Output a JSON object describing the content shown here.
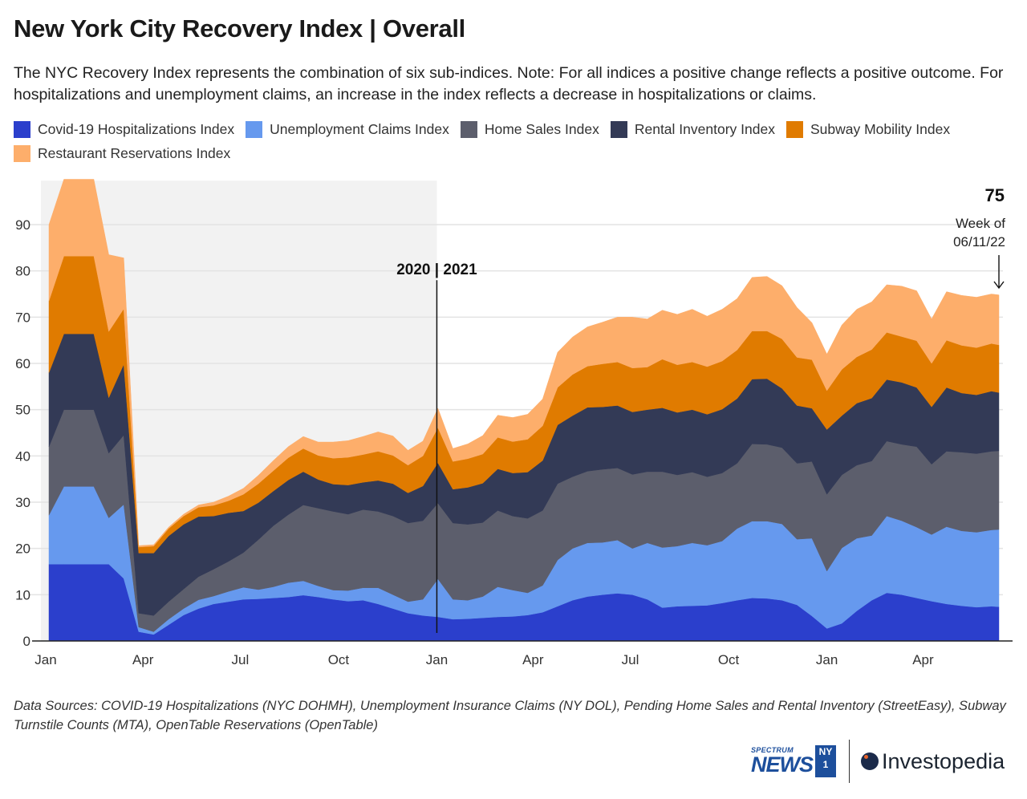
{
  "header": {
    "title": "New York City Recovery Index | Overall",
    "subtitle": "The NYC Recovery Index represents the combination of six sub-indices. Note: For all indices a positive change reflects a positive outcome. For hospitalizations and unemployment claims, an increase in the index reflects a decrease in hospitalizations or claims."
  },
  "legend": [
    {
      "label": "Covid-19 Hospitalizations Index",
      "color": "#2b3fcc"
    },
    {
      "label": "Unemployment Claims Index",
      "color": "#6699ee"
    },
    {
      "label": "Home Sales Index",
      "color": "#5c5e6c"
    },
    {
      "label": "Rental Inventory Index",
      "color": "#333a56"
    },
    {
      "label": "Subway Mobility Index",
      "color": "#e07b00"
    },
    {
      "label": "Restaurant Reservations Index",
      "color": "#fdae6b"
    }
  ],
  "chart_data": {
    "type": "area",
    "stacked": true,
    "title": "New York City Recovery Index | Overall",
    "xlabel": "",
    "ylabel": "",
    "ylim": [
      0,
      100
    ],
    "yticks": [
      0,
      10,
      20,
      30,
      40,
      50,
      60,
      70,
      80,
      90
    ],
    "grid": true,
    "xtick_labels": [
      {
        "label": "Jan",
        "date": "2020-01-01"
      },
      {
        "label": "Apr",
        "date": "2020-04-01"
      },
      {
        "label": "Jul",
        "date": "2020-07-01"
      },
      {
        "label": "Oct",
        "date": "2020-10-01"
      },
      {
        "label": "Jan",
        "date": "2021-01-01"
      },
      {
        "label": "Apr",
        "date": "2021-04-01"
      },
      {
        "label": "Jul",
        "date": "2021-07-01"
      },
      {
        "label": "Oct",
        "date": "2021-10-01"
      },
      {
        "label": "Jan",
        "date": "2022-01-01"
      },
      {
        "label": "Apr",
        "date": "2022-04-01"
      }
    ],
    "x_start": "2020-01-04",
    "x_step_days": 14,
    "x": [
      "2020-01-04",
      "2020-01-18",
      "2020-02-01",
      "2020-02-15",
      "2020-02-29",
      "2020-03-14",
      "2020-03-28",
      "2020-04-11",
      "2020-04-25",
      "2020-05-09",
      "2020-05-23",
      "2020-06-06",
      "2020-06-20",
      "2020-07-04",
      "2020-07-18",
      "2020-08-01",
      "2020-08-15",
      "2020-08-29",
      "2020-09-12",
      "2020-09-26",
      "2020-10-10",
      "2020-10-24",
      "2020-11-07",
      "2020-11-21",
      "2020-12-05",
      "2020-12-19",
      "2021-01-02",
      "2021-01-16",
      "2021-01-30",
      "2021-02-13",
      "2021-02-27",
      "2021-03-13",
      "2021-03-27",
      "2021-04-10",
      "2021-04-24",
      "2021-05-08",
      "2021-05-22",
      "2021-06-05",
      "2021-06-19",
      "2021-07-03",
      "2021-07-17",
      "2021-07-31",
      "2021-08-14",
      "2021-08-28",
      "2021-09-11",
      "2021-09-25",
      "2021-10-09",
      "2021-10-23",
      "2021-11-06",
      "2021-11-20",
      "2021-12-04",
      "2021-12-18",
      "2022-01-01",
      "2022-01-15",
      "2022-01-29",
      "2022-02-12",
      "2022-02-26",
      "2022-03-12",
      "2022-03-26",
      "2022-04-09",
      "2022-04-23",
      "2022-05-07",
      "2022-05-21",
      "2022-06-04",
      "2022-06-11"
    ],
    "series": [
      {
        "name": "Covid-19 Hospitalizations Index",
        "color": "#2b3fcc",
        "values": [
          16.6,
          16.6,
          16.6,
          16.6,
          16.6,
          13.5,
          2.0,
          1.4,
          3.5,
          5.6,
          7.0,
          8.0,
          8.5,
          9.0,
          9.1,
          9.3,
          9.5,
          9.9,
          9.5,
          9.0,
          8.6,
          8.8,
          8.0,
          7.0,
          6.0,
          5.5,
          5.2,
          4.7,
          4.8,
          5.0,
          5.2,
          5.3,
          5.6,
          6.2,
          7.5,
          8.8,
          9.6,
          10.0,
          10.3,
          10.0,
          9.0,
          7.2,
          7.5,
          7.6,
          7.7,
          8.2,
          8.8,
          9.3,
          9.2,
          8.8,
          7.8,
          5.4,
          2.7,
          3.8,
          6.5,
          8.8,
          10.4,
          10.0,
          9.3,
          8.6,
          8.0,
          7.6,
          7.3,
          7.5,
          7.4
        ]
      },
      {
        "name": "Unemployment Claims Index",
        "color": "#6699ee",
        "values": [
          10.6,
          16.8,
          16.8,
          16.8,
          10.0,
          16.0,
          1.0,
          0.6,
          1.2,
          1.4,
          1.9,
          1.7,
          2.2,
          2.6,
          2.0,
          2.4,
          3.1,
          3.1,
          2.4,
          2.0,
          2.3,
          2.7,
          3.5,
          3.0,
          2.5,
          3.5,
          8.2,
          4.3,
          4.0,
          4.6,
          6.5,
          5.7,
          4.8,
          5.8,
          10.0,
          11.2,
          11.6,
          11.3,
          11.5,
          10.0,
          12.2,
          13.0,
          13.0,
          13.6,
          13.0,
          13.4,
          15.5,
          16.6,
          16.7,
          16.5,
          14.2,
          16.8,
          12.4,
          16.3,
          15.7,
          14.0,
          16.6,
          16.0,
          15.3,
          14.4,
          16.7,
          16.2,
          16.2,
          16.5,
          16.7
        ]
      },
      {
        "name": "Home Sales Index",
        "color": "#5c5e6c",
        "values": [
          14.8,
          16.6,
          16.6,
          16.6,
          14.0,
          15.0,
          3.0,
          3.5,
          3.8,
          4.2,
          5.0,
          5.8,
          6.5,
          7.5,
          10.8,
          13.2,
          14.7,
          16.4,
          16.8,
          17.0,
          16.5,
          16.9,
          16.5,
          17.0,
          17.0,
          17.0,
          16.4,
          16.5,
          16.4,
          16.0,
          16.5,
          16.0,
          16.1,
          16.2,
          16.5,
          15.5,
          15.5,
          15.8,
          15.6,
          16.0,
          15.4,
          16.4,
          15.4,
          15.3,
          14.8,
          14.7,
          14.1,
          16.7,
          16.6,
          16.5,
          16.4,
          16.6,
          16.6,
          15.8,
          15.8,
          16.1,
          16.2,
          16.5,
          17.4,
          15.2,
          16.3,
          17.0,
          17.0,
          17.0,
          17.0
        ]
      },
      {
        "name": "Rental Inventory Index",
        "color": "#333a56",
        "values": [
          16.0,
          16.4,
          16.4,
          16.4,
          12.0,
          15.3,
          13.0,
          13.5,
          14.2,
          14.0,
          13.0,
          11.5,
          10.5,
          9.0,
          8.0,
          7.5,
          7.5,
          7.2,
          6.2,
          5.9,
          6.3,
          5.9,
          6.7,
          7.0,
          6.5,
          7.5,
          8.7,
          7.3,
          8.0,
          8.5,
          9.0,
          9.3,
          10.0,
          10.8,
          12.7,
          13.2,
          13.8,
          13.5,
          13.5,
          13.5,
          13.4,
          13.8,
          13.5,
          13.5,
          13.5,
          13.8,
          14.0,
          14.0,
          14.2,
          12.8,
          12.5,
          11.5,
          14.0,
          12.8,
          13.4,
          13.6,
          13.3,
          13.4,
          12.8,
          12.4,
          13.8,
          12.8,
          12.7,
          13.0,
          12.6
        ]
      },
      {
        "name": "Subway Mobility Index",
        "color": "#e07b00",
        "values": [
          15.5,
          16.8,
          16.8,
          16.8,
          14.3,
          12.0,
          1.3,
          1.5,
          1.6,
          1.8,
          2.0,
          2.3,
          2.6,
          3.6,
          4.1,
          4.4,
          4.8,
          5.0,
          5.2,
          5.6,
          6.0,
          6.0,
          6.3,
          6.1,
          6.0,
          6.5,
          7.6,
          6.0,
          6.2,
          6.3,
          6.8,
          6.8,
          7.1,
          7.5,
          8.1,
          8.9,
          8.9,
          9.3,
          9.4,
          9.5,
          9.2,
          10.5,
          10.3,
          10.3,
          10.3,
          10.4,
          10.5,
          10.4,
          10.3,
          10.7,
          10.4,
          10.5,
          8.4,
          10.0,
          10.0,
          10.5,
          10.2,
          9.9,
          10.1,
          9.4,
          10.2,
          10.3,
          10.2,
          10.3,
          10.3
        ]
      },
      {
        "name": "Restaurant Reservations Index",
        "color": "#fdae6b",
        "values": [
          16.5,
          16.6,
          16.6,
          16.6,
          16.6,
          11.0,
          0.3,
          0.3,
          0.3,
          0.4,
          0.5,
          0.7,
          1.0,
          1.3,
          1.8,
          2.2,
          2.4,
          2.6,
          2.9,
          3.5,
          3.6,
          3.9,
          4.2,
          4.2,
          3.2,
          3.2,
          4.2,
          2.8,
          3.2,
          4.0,
          4.8,
          5.2,
          5.4,
          5.8,
          7.6,
          8.1,
          8.5,
          9.0,
          9.7,
          11.0,
          10.4,
          10.6,
          10.9,
          11.4,
          10.9,
          11.2,
          11.1,
          11.6,
          11.8,
          11.5,
          10.8,
          8.0,
          7.9,
          9.6,
          10.3,
          10.3,
          10.3,
          10.9,
          10.8,
          9.6,
          10.5,
          10.8,
          10.9,
          10.7,
          10.8
        ]
      }
    ],
    "annotations": [
      {
        "type": "divider",
        "date": "2021-01-01",
        "label": "2020 | 2021"
      },
      {
        "type": "shaded_region",
        "from": "2020-01-01",
        "to": "2021-01-01",
        "note": "2020"
      },
      {
        "type": "callout",
        "date": "2022-06-11",
        "value_label": "75",
        "text_lines": [
          "Week of",
          "06/11/22"
        ]
      }
    ]
  },
  "footer": {
    "sources": "Data Sources: COVID-19 Hospitalizations (NYC DOHMH), Unemployment Insurance Claims (NY DOL), Pending Home Sales and Rental Inventory (StreetEasy), Subway Turnstile Counts (MTA), OpenTable Reservations (OpenTable)"
  },
  "logos": {
    "spectrum_top": "SPECTRUM",
    "spectrum_main": "NEWS",
    "ny1_line1": "NY",
    "ny1_line2": "1",
    "investopedia": "Investopedia"
  }
}
